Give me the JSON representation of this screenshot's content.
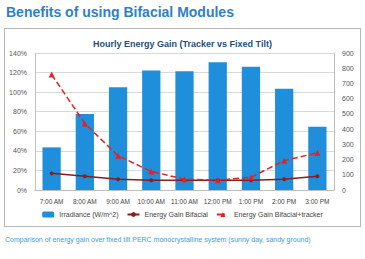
{
  "slide_title": "Benefits of using Bifacial Modules",
  "caption": "Comparison of energy gain over fixed tilt PERC monocrystalline system (sunny day, sandy ground)",
  "chart_data": {
    "type": "bar",
    "title": "Hourly Energy Gain (Tracker vs Fixed Tilt)",
    "categories": [
      "7:00 AM",
      "8:00 AM",
      "9:00 AM",
      "10:00 AM",
      "11:00 AM",
      "12:00 PM",
      "1:00 PM",
      "2:00 PM",
      "3:00 PM"
    ],
    "series": [
      {
        "name": "Irradiance (W/m^2)",
        "type": "bar",
        "axis": "y2",
        "color": "#1f8fdc",
        "values": [
          280,
          500,
          675,
          785,
          780,
          840,
          810,
          665,
          415
        ]
      },
      {
        "name": "Energy Gain Bifacial",
        "type": "line",
        "color": "#8b1c1c",
        "marker": "circle",
        "line_style": "solid",
        "values": [
          17,
          14,
          11,
          10,
          10,
          10,
          10,
          11,
          14
        ]
      },
      {
        "name": "Energy Gain Bifacial+tracker",
        "type": "line",
        "color": "#e02424",
        "marker": "triangle",
        "line_style": "dashed",
        "values": [
          118,
          68,
          35,
          19,
          11,
          10,
          13,
          30,
          38
        ]
      }
    ],
    "ylim": [
      0,
      140
    ],
    "yticks": [
      {
        "value": 0,
        "label": "0%"
      },
      {
        "value": 20,
        "label": "20%"
      },
      {
        "value": 40,
        "label": "40%"
      },
      {
        "value": 60,
        "label": "60%"
      },
      {
        "value": 80,
        "label": "80%"
      },
      {
        "value": 100,
        "label": "100%"
      },
      {
        "value": 120,
        "label": "120%"
      },
      {
        "value": 140,
        "label": "140%"
      }
    ],
    "y2lim": [
      0,
      900
    ],
    "y2ticks": [
      0,
      100,
      200,
      300,
      400,
      500,
      600,
      700,
      800,
      900
    ],
    "grid": true,
    "legend": "bottom"
  }
}
